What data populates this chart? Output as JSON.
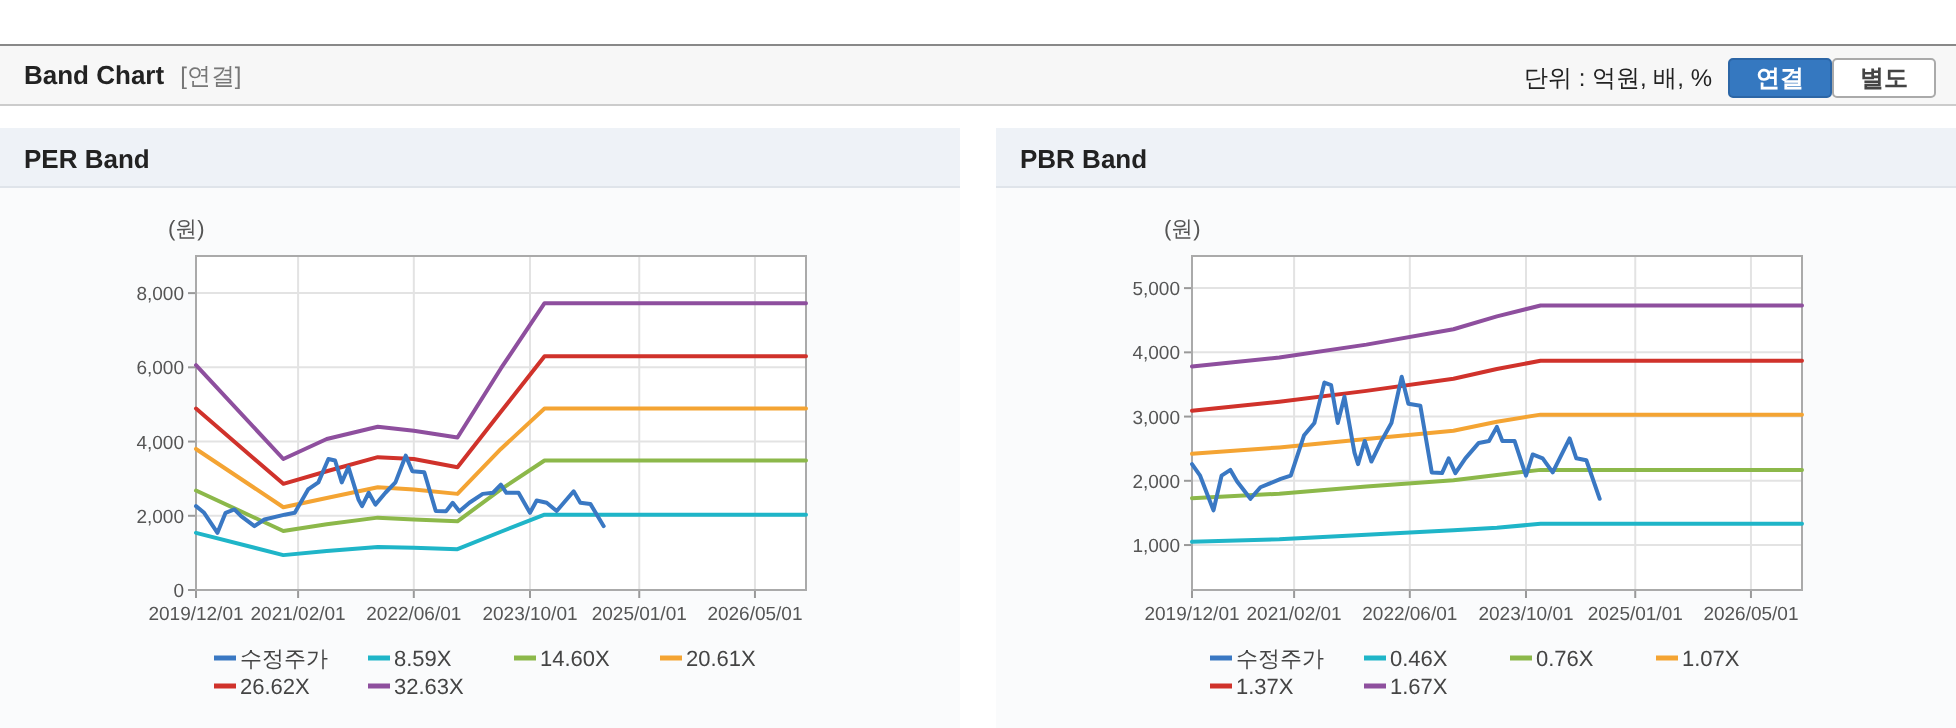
{
  "chart_data": [
    {
      "type": "other",
      "title": "Band Chart",
      "subtitle": "[연결]",
      "annotations": [
        "단위 : 억원, 배, %",
        "연결",
        "별도"
      ]
    },
    {
      "type": "line",
      "title": "PER Band",
      "ylabel": "(원)",
      "xlim": [
        "2019-12-01",
        "2026-12-01"
      ],
      "ylim": [
        0,
        9000
      ],
      "xticks": [
        {
          "value": "2019-12-01",
          "label": "2019/12/01"
        },
        {
          "value": "2021-02-01",
          "label": "2021/02/01"
        },
        {
          "value": "2022-06-01",
          "label": "2022/06/01"
        },
        {
          "value": "2023-10-01",
          "label": "2023/10/01"
        },
        {
          "value": "2025-01-01",
          "label": "2025/01/01"
        },
        {
          "value": "2026-05-01",
          "label": "2026/05/01"
        }
      ],
      "yticks": [
        0,
        {
          "value": 2000,
          "label": "2,000"
        },
        {
          "value": 4000,
          "label": "4,000"
        },
        {
          "value": 6000,
          "label": "6,000"
        },
        {
          "value": 8000,
          "label": "8,000"
        }
      ],
      "grid": true,
      "legend": "bottom",
      "series": [
        {
          "name": "수정주가",
          "color": "#3a78c3",
          "x": [
            "2019-12-01",
            "2020-01-04",
            "2020-02-29",
            "2020-04-03",
            "2020-05-10",
            "2020-06-07",
            "2020-08-02",
            "2020-09-13",
            "2020-12-07",
            "2021-01-18",
            "2021-03-15",
            "2021-04-27",
            "2021-06-08",
            "2021-07-06",
            "2021-08-03",
            "2021-08-31",
            "2021-10-12",
            "2021-10-27",
            "2021-11-24",
            "2021-12-22",
            "2022-02-02",
            "2022-03-16",
            "2022-04-28",
            "2022-05-26",
            "2022-07-15",
            "2022-09-01",
            "2022-10-14",
            "2022-11-11",
            "2022-12-09",
            "2023-01-20",
            "2023-03-17",
            "2023-04-29",
            "2023-06-01",
            "2023-06-24",
            "2023-08-14",
            "2023-10-01",
            "2023-10-29",
            "2023-12-10",
            "2024-01-21",
            "2024-04-01",
            "2024-04-29",
            "2024-06-10",
            "2024-08-05"
          ],
          "values": [
            2260,
            2080,
            1540,
            2080,
            2170,
            1990,
            1720,
            1900,
            2030,
            2080,
            2710,
            2900,
            3530,
            3490,
            2900,
            3310,
            2440,
            2260,
            2620,
            2300,
            2620,
            2900,
            3620,
            3200,
            3170,
            2130,
            2120,
            2350,
            2120,
            2350,
            2590,
            2620,
            2840,
            2620,
            2620,
            2080,
            2410,
            2350,
            2130,
            2660,
            2350,
            2320,
            1720
          ]
        },
        {
          "name": "8.59X",
          "color": "#1fb5c8",
          "x": [
            "2019-12-01",
            "2020-12-01",
            "2021-06-01",
            "2022-01-01",
            "2022-06-01",
            "2022-12-01",
            "2023-06-01",
            "2023-12-01",
            "2026-12-01"
          ],
          "values": [
            1540,
            940,
            1050,
            1160,
            1140,
            1100,
            1570,
            2030,
            2030
          ]
        },
        {
          "name": "14.60X",
          "color": "#8cb84a",
          "x": [
            "2019-12-01",
            "2020-12-01",
            "2021-06-01",
            "2022-01-01",
            "2022-06-01",
            "2022-12-01",
            "2023-06-01",
            "2023-12-01",
            "2026-12-01"
          ],
          "values": [
            2680,
            1590,
            1770,
            1950,
            1900,
            1850,
            2710,
            3490,
            3490
          ]
        },
        {
          "name": "20.61X",
          "color": "#f4a433",
          "x": [
            "2019-12-01",
            "2020-12-01",
            "2021-06-01",
            "2022-01-01",
            "2022-06-01",
            "2022-12-01",
            "2023-06-01",
            "2023-12-01",
            "2026-12-01"
          ],
          "values": [
            3800,
            2230,
            2480,
            2770,
            2710,
            2590,
            3800,
            4890,
            4890
          ]
        },
        {
          "name": "26.62X",
          "color": "#d0322b",
          "x": [
            "2019-12-01",
            "2020-12-01",
            "2021-06-01",
            "2022-01-01",
            "2022-06-01",
            "2022-12-01",
            "2023-06-01",
            "2023-12-01",
            "2026-12-01"
          ],
          "values": [
            4890,
            2860,
            3200,
            3580,
            3530,
            3310,
            4800,
            6300,
            6300
          ]
        },
        {
          "name": "32.63X",
          "color": "#8e4f9e",
          "x": [
            "2019-12-01",
            "2020-12-01",
            "2021-06-01",
            "2022-01-01",
            "2022-06-01",
            "2022-12-01",
            "2023-06-01",
            "2023-12-01",
            "2026-12-01"
          ],
          "values": [
            6060,
            3530,
            4070,
            4400,
            4290,
            4110,
            5970,
            7730,
            7730
          ]
        }
      ]
    },
    {
      "type": "line",
      "title": "PBR Band",
      "ylabel": "(원)",
      "xlim": [
        "2019-12-01",
        "2026-12-01"
      ],
      "ylim": [
        300,
        5500
      ],
      "xticks": [
        {
          "value": "2019-12-01",
          "label": "2019/12/01"
        },
        {
          "value": "2021-02-01",
          "label": "2021/02/01"
        },
        {
          "value": "2022-06-01",
          "label": "2022/06/01"
        },
        {
          "value": "2023-10-01",
          "label": "2023/10/01"
        },
        {
          "value": "2025-01-01",
          "label": "2025/01/01"
        },
        {
          "value": "2026-05-01",
          "label": "2026/05/01"
        }
      ],
      "yticks": [
        {
          "value": 1000,
          "label": "1,000"
        },
        {
          "value": 2000,
          "label": "2,000"
        },
        {
          "value": 3000,
          "label": "3,000"
        },
        {
          "value": 4000,
          "label": "4,000"
        },
        {
          "value": 5000,
          "label": "5,000"
        }
      ],
      "grid": true,
      "legend": "bottom",
      "series": [
        {
          "name": "수정주가",
          "color": "#3a78c3",
          "x": [
            "2019-12-01",
            "2020-01-04",
            "2020-02-29",
            "2020-04-03",
            "2020-05-10",
            "2020-06-07",
            "2020-08-02",
            "2020-09-13",
            "2020-12-07",
            "2021-01-18",
            "2021-03-15",
            "2021-04-27",
            "2021-06-08",
            "2021-07-06",
            "2021-08-03",
            "2021-08-31",
            "2021-10-12",
            "2021-10-27",
            "2021-11-24",
            "2021-12-22",
            "2022-02-02",
            "2022-03-16",
            "2022-04-28",
            "2022-05-26",
            "2022-07-15",
            "2022-09-01",
            "2022-10-14",
            "2022-11-11",
            "2022-12-09",
            "2023-01-20",
            "2023-03-17",
            "2023-04-29",
            "2023-06-01",
            "2023-06-24",
            "2023-08-14",
            "2023-10-01",
            "2023-10-29",
            "2023-12-10",
            "2024-01-21",
            "2024-04-01",
            "2024-04-29",
            "2024-06-10",
            "2024-08-05"
          ],
          "values": [
            2260,
            2080,
            1540,
            2080,
            2170,
            1990,
            1720,
            1900,
            2030,
            2080,
            2710,
            2900,
            3530,
            3490,
            2900,
            3310,
            2440,
            2260,
            2620,
            2300,
            2620,
            2900,
            3620,
            3200,
            3170,
            2130,
            2120,
            2350,
            2120,
            2350,
            2590,
            2620,
            2840,
            2620,
            2620,
            2080,
            2410,
            2350,
            2130,
            2660,
            2350,
            2320,
            1720
          ]
        },
        {
          "name": "0.46X",
          "color": "#1fb5c8",
          "x": [
            "2019-12-01",
            "2020-12-01",
            "2021-12-01",
            "2022-12-01",
            "2023-06-01",
            "2023-12-01",
            "2026-12-01"
          ],
          "values": [
            1050,
            1090,
            1160,
            1230,
            1270,
            1330,
            1330
          ]
        },
        {
          "name": "0.76X",
          "color": "#8cb84a",
          "x": [
            "2019-12-01",
            "2020-12-01",
            "2021-12-01",
            "2022-12-01",
            "2023-06-01",
            "2023-12-01",
            "2026-12-01"
          ],
          "values": [
            1730,
            1800,
            1910,
            2010,
            2090,
            2170,
            2170
          ]
        },
        {
          "name": "1.07X",
          "color": "#f4a433",
          "x": [
            "2019-12-01",
            "2020-12-01",
            "2021-12-01",
            "2022-12-01",
            "2023-06-01",
            "2023-12-01",
            "2026-12-01"
          ],
          "values": [
            2420,
            2520,
            2650,
            2780,
            2920,
            3030,
            3030
          ]
        },
        {
          "name": "1.37X",
          "color": "#d0322b",
          "x": [
            "2019-12-01",
            "2020-12-01",
            "2021-12-01",
            "2022-12-01",
            "2023-06-01",
            "2023-12-01",
            "2026-12-01"
          ],
          "values": [
            3090,
            3230,
            3400,
            3590,
            3740,
            3870,
            3870
          ]
        },
        {
          "name": "1.67X",
          "color": "#8e4f9e",
          "x": [
            "2019-12-01",
            "2020-12-01",
            "2021-12-01",
            "2022-12-01",
            "2023-06-01",
            "2023-12-01",
            "2026-12-01"
          ],
          "values": [
            3780,
            3920,
            4120,
            4360,
            4560,
            4730,
            4730
          ]
        }
      ]
    }
  ]
}
